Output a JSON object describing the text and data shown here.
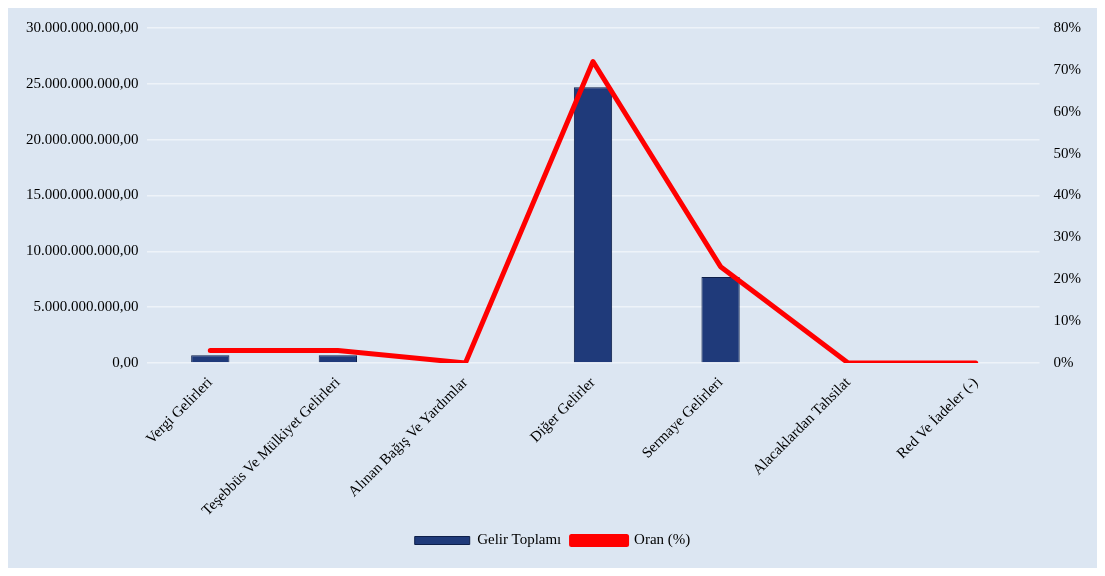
{
  "chart_data": {
    "type": "bar",
    "categories": [
      "Vergi Gelirleri",
      "Teşebbüs Ve Mülkiyet Gelirleri",
      "Alınan Bağış Ve Yardımlar",
      "Diğer Gelirler",
      "Sermaye Gelirleri",
      "Alacaklardan Tahsilat",
      "Red Ve İadeler (-)"
    ],
    "series": [
      {
        "name": "Gelir Toplamı",
        "color": "#1f3a7a",
        "values": [
          700000000,
          700000000,
          0,
          24700000000,
          7700000000,
          0,
          0
        ]
      },
      {
        "name": "Oran (%)",
        "type": "line",
        "axis": "y2",
        "color": "#ff0000",
        "values": [
          3,
          3,
          0,
          72,
          23,
          0,
          0
        ]
      }
    ],
    "ylim": [
      0,
      30000000000
    ],
    "yticks": [
      {
        "value": 0,
        "label": "0,00"
      },
      {
        "value": 5000000000,
        "label": "5.000.000.000,00"
      },
      {
        "value": 10000000000,
        "label": "10.000.000.000,00"
      },
      {
        "value": 15000000000,
        "label": "15.000.000.000,00"
      },
      {
        "value": 20000000000,
        "label": "20.000.000.000,00"
      },
      {
        "value": 25000000000,
        "label": "25.000.000.000,00"
      },
      {
        "value": 30000000000,
        "label": "30.000.000.000,00"
      }
    ],
    "y2lim": [
      0,
      80
    ],
    "y2ticks": [
      {
        "value": 0,
        "label": "0%"
      },
      {
        "value": 10,
        "label": "10%"
      },
      {
        "value": 20,
        "label": "20%"
      },
      {
        "value": 30,
        "label": "30%"
      },
      {
        "value": 40,
        "label": "40%"
      },
      {
        "value": 50,
        "label": "50%"
      },
      {
        "value": 60,
        "label": "60%"
      },
      {
        "value": 70,
        "label": "70%"
      },
      {
        "value": 80,
        "label": "80%"
      }
    ],
    "grid": "y",
    "legend": "bottom",
    "marker": "none",
    "line_style": "solid"
  }
}
